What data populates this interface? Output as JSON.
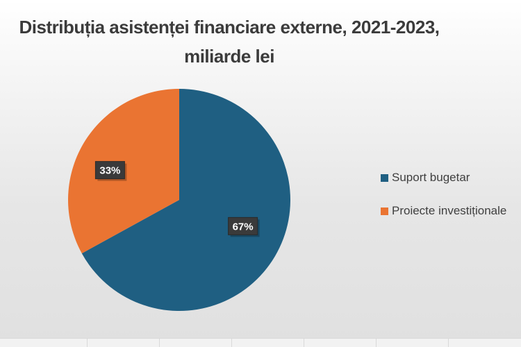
{
  "chart_data": {
    "type": "pie",
    "title": "Distribuția asistenței financiare externe, 2021-2023, miliarde lei",
    "title_lines": [
      "Distribuția asistenței financiare externe, 2021-2023,",
      "miliarde lei"
    ],
    "categories": [
      "Suport bugetar",
      "Proiecte investiționale"
    ],
    "values": [
      67,
      33
    ],
    "data_labels": [
      "67%",
      "33%"
    ],
    "colors": [
      "#1f5f82",
      "#ea7432"
    ],
    "legend_position": "right"
  }
}
